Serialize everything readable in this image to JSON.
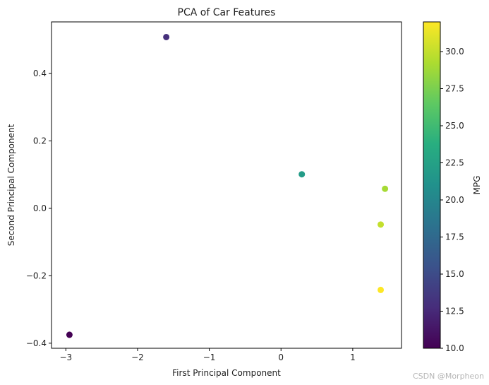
{
  "chart_data": {
    "type": "scatter",
    "title": "PCA of Car Features",
    "xlabel": "First Principal Component",
    "ylabel": "Second Principal Component",
    "xlim": [
      -3.2,
      1.68
    ],
    "ylim": [
      -0.415,
      0.553
    ],
    "xticks": [
      -3,
      -2,
      -1,
      0,
      1
    ],
    "yticks": [
      -0.4,
      -0.2,
      0.0,
      0.2,
      0.4
    ],
    "points": [
      {
        "x": -1.6,
        "y": 0.508,
        "mpg": 13
      },
      {
        "x": 0.29,
        "y": 0.101,
        "mpg": 22
      },
      {
        "x": 1.45,
        "y": 0.058,
        "mpg": 29
      },
      {
        "x": 1.39,
        "y": -0.048,
        "mpg": 30
      },
      {
        "x": 1.39,
        "y": -0.242,
        "mpg": 32
      },
      {
        "x": -2.95,
        "y": -0.375,
        "mpg": 10
      }
    ],
    "colorbar": {
      "label": "MPG",
      "colormap": "viridis",
      "range": [
        10,
        32
      ],
      "ticks": [
        10.0,
        12.5,
        15.0,
        17.5,
        20.0,
        22.5,
        25.0,
        27.5,
        30.0
      ]
    },
    "grid": false
  },
  "watermark": "CSDN @Morpheon"
}
